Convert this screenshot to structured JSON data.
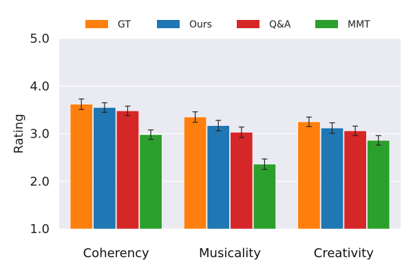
{
  "chart_data": {
    "type": "bar",
    "title": "",
    "xlabel": "",
    "ylabel": "Rating",
    "ylim": [
      1.0,
      5.0
    ],
    "yticks": [
      "1.0",
      "2.0",
      "3.0",
      "4.0",
      "5.0"
    ],
    "grid": true,
    "legend_position": "top-center",
    "categories": [
      "Coherency",
      "Musicality",
      "Creativity"
    ],
    "series": [
      {
        "name": "GT",
        "color": "#ff7f0e",
        "values": [
          3.62,
          3.35,
          3.25
        ],
        "errors": [
          0.11,
          0.11,
          0.1
        ]
      },
      {
        "name": "Ours",
        "color": "#1f77b4",
        "values": [
          3.55,
          3.17,
          3.12
        ],
        "errors": [
          0.1,
          0.11,
          0.11
        ]
      },
      {
        "name": "Q&A",
        "color": "#d62728",
        "values": [
          3.48,
          3.03,
          3.06
        ],
        "errors": [
          0.1,
          0.11,
          0.1
        ]
      },
      {
        "name": "MMT",
        "color": "#2ca02c",
        "values": [
          2.98,
          2.36,
          2.86
        ],
        "errors": [
          0.1,
          0.11,
          0.1
        ]
      }
    ]
  }
}
